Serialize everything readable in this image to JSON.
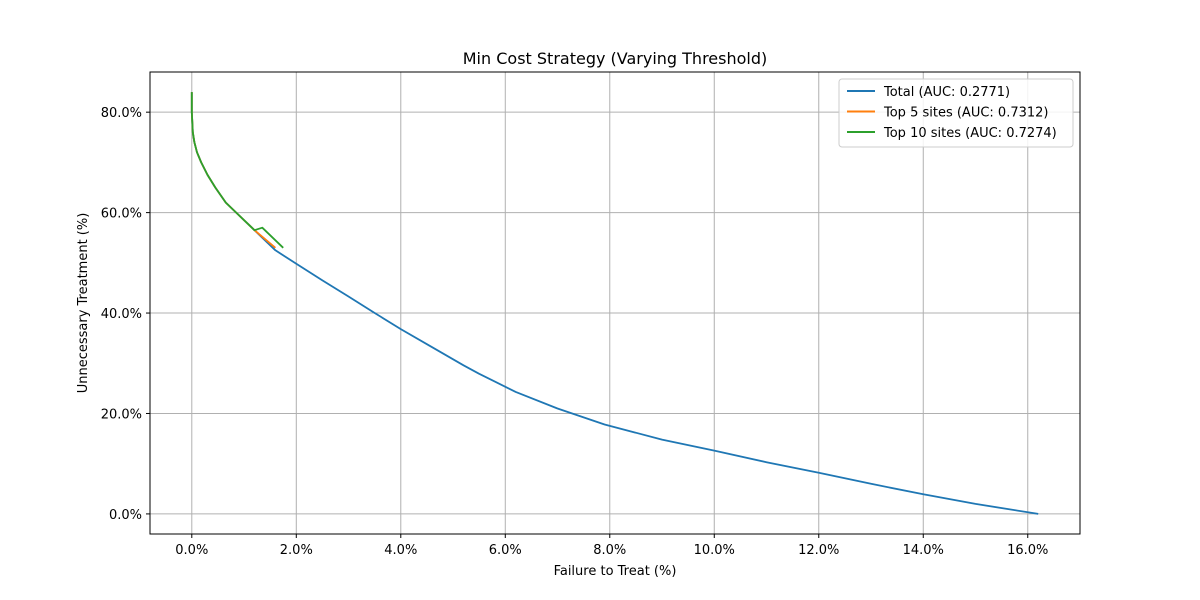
{
  "chart_data": {
    "type": "line",
    "title": "Min Cost Strategy (Varying Threshold)",
    "xlabel": "Failure to Treat (%)",
    "ylabel": "Unnecessary Treatment (%)",
    "xlim": [
      -0.8,
      17.0
    ],
    "ylim": [
      -4.0,
      88.0
    ],
    "xticks": [
      0,
      2,
      4,
      6,
      8,
      10,
      12,
      14,
      16
    ],
    "xtick_labels": [
      "0.0%",
      "2.0%",
      "4.0%",
      "6.0%",
      "8.0%",
      "10.0%",
      "12.0%",
      "14.0%",
      "16.0%"
    ],
    "yticks": [
      0,
      20,
      40,
      60,
      80
    ],
    "ytick_labels": [
      "0.0%",
      "20.0%",
      "40.0%",
      "60.0%",
      "80.0%"
    ],
    "grid": true,
    "legend_position": "top-right",
    "series": [
      {
        "name": "Total (AUC: 0.2771)",
        "color": "#1f77b4",
        "x": [
          0.0,
          0.0,
          0.02,
          0.05,
          0.1,
          0.18,
          0.3,
          0.45,
          0.65,
          0.9,
          1.2,
          1.6,
          2.0,
          2.5,
          3.0,
          3.5,
          4.0,
          4.6,
          5.2,
          5.5,
          6.2,
          7.0,
          7.9,
          9.0,
          10.0,
          11.0,
          12.0,
          13.0,
          14.0,
          15.0,
          16.2
        ],
        "y": [
          84.0,
          80.0,
          76.0,
          74.0,
          72.0,
          70.0,
          67.5,
          65.0,
          62.0,
          59.5,
          56.5,
          52.5,
          49.8,
          46.5,
          43.3,
          40.0,
          36.8,
          33.2,
          29.6,
          27.9,
          24.3,
          21.0,
          17.8,
          14.8,
          12.6,
          10.3,
          8.2,
          6.0,
          3.9,
          2.0,
          0.0
        ]
      },
      {
        "name": "Top 5 sites (AUC: 0.7312)",
        "color": "#ff7f0e",
        "x": [
          0.0,
          0.0,
          0.02,
          0.05,
          0.1,
          0.18,
          0.3,
          0.45,
          0.65,
          0.9,
          1.2,
          1.6
        ],
        "y": [
          84.0,
          80.0,
          76.0,
          74.0,
          72.0,
          70.0,
          67.5,
          65.0,
          62.0,
          59.5,
          56.5,
          53.0
        ]
      },
      {
        "name": "Top 10 sites (AUC: 0.7274)",
        "color": "#2ca02c",
        "x": [
          0.0,
          0.0,
          0.02,
          0.05,
          0.1,
          0.18,
          0.3,
          0.45,
          0.65,
          0.9,
          1.2,
          1.35,
          1.75
        ],
        "y": [
          84.0,
          80.0,
          76.0,
          74.0,
          72.0,
          70.0,
          67.5,
          65.0,
          62.0,
          59.5,
          56.5,
          57.0,
          53.0
        ]
      }
    ]
  }
}
